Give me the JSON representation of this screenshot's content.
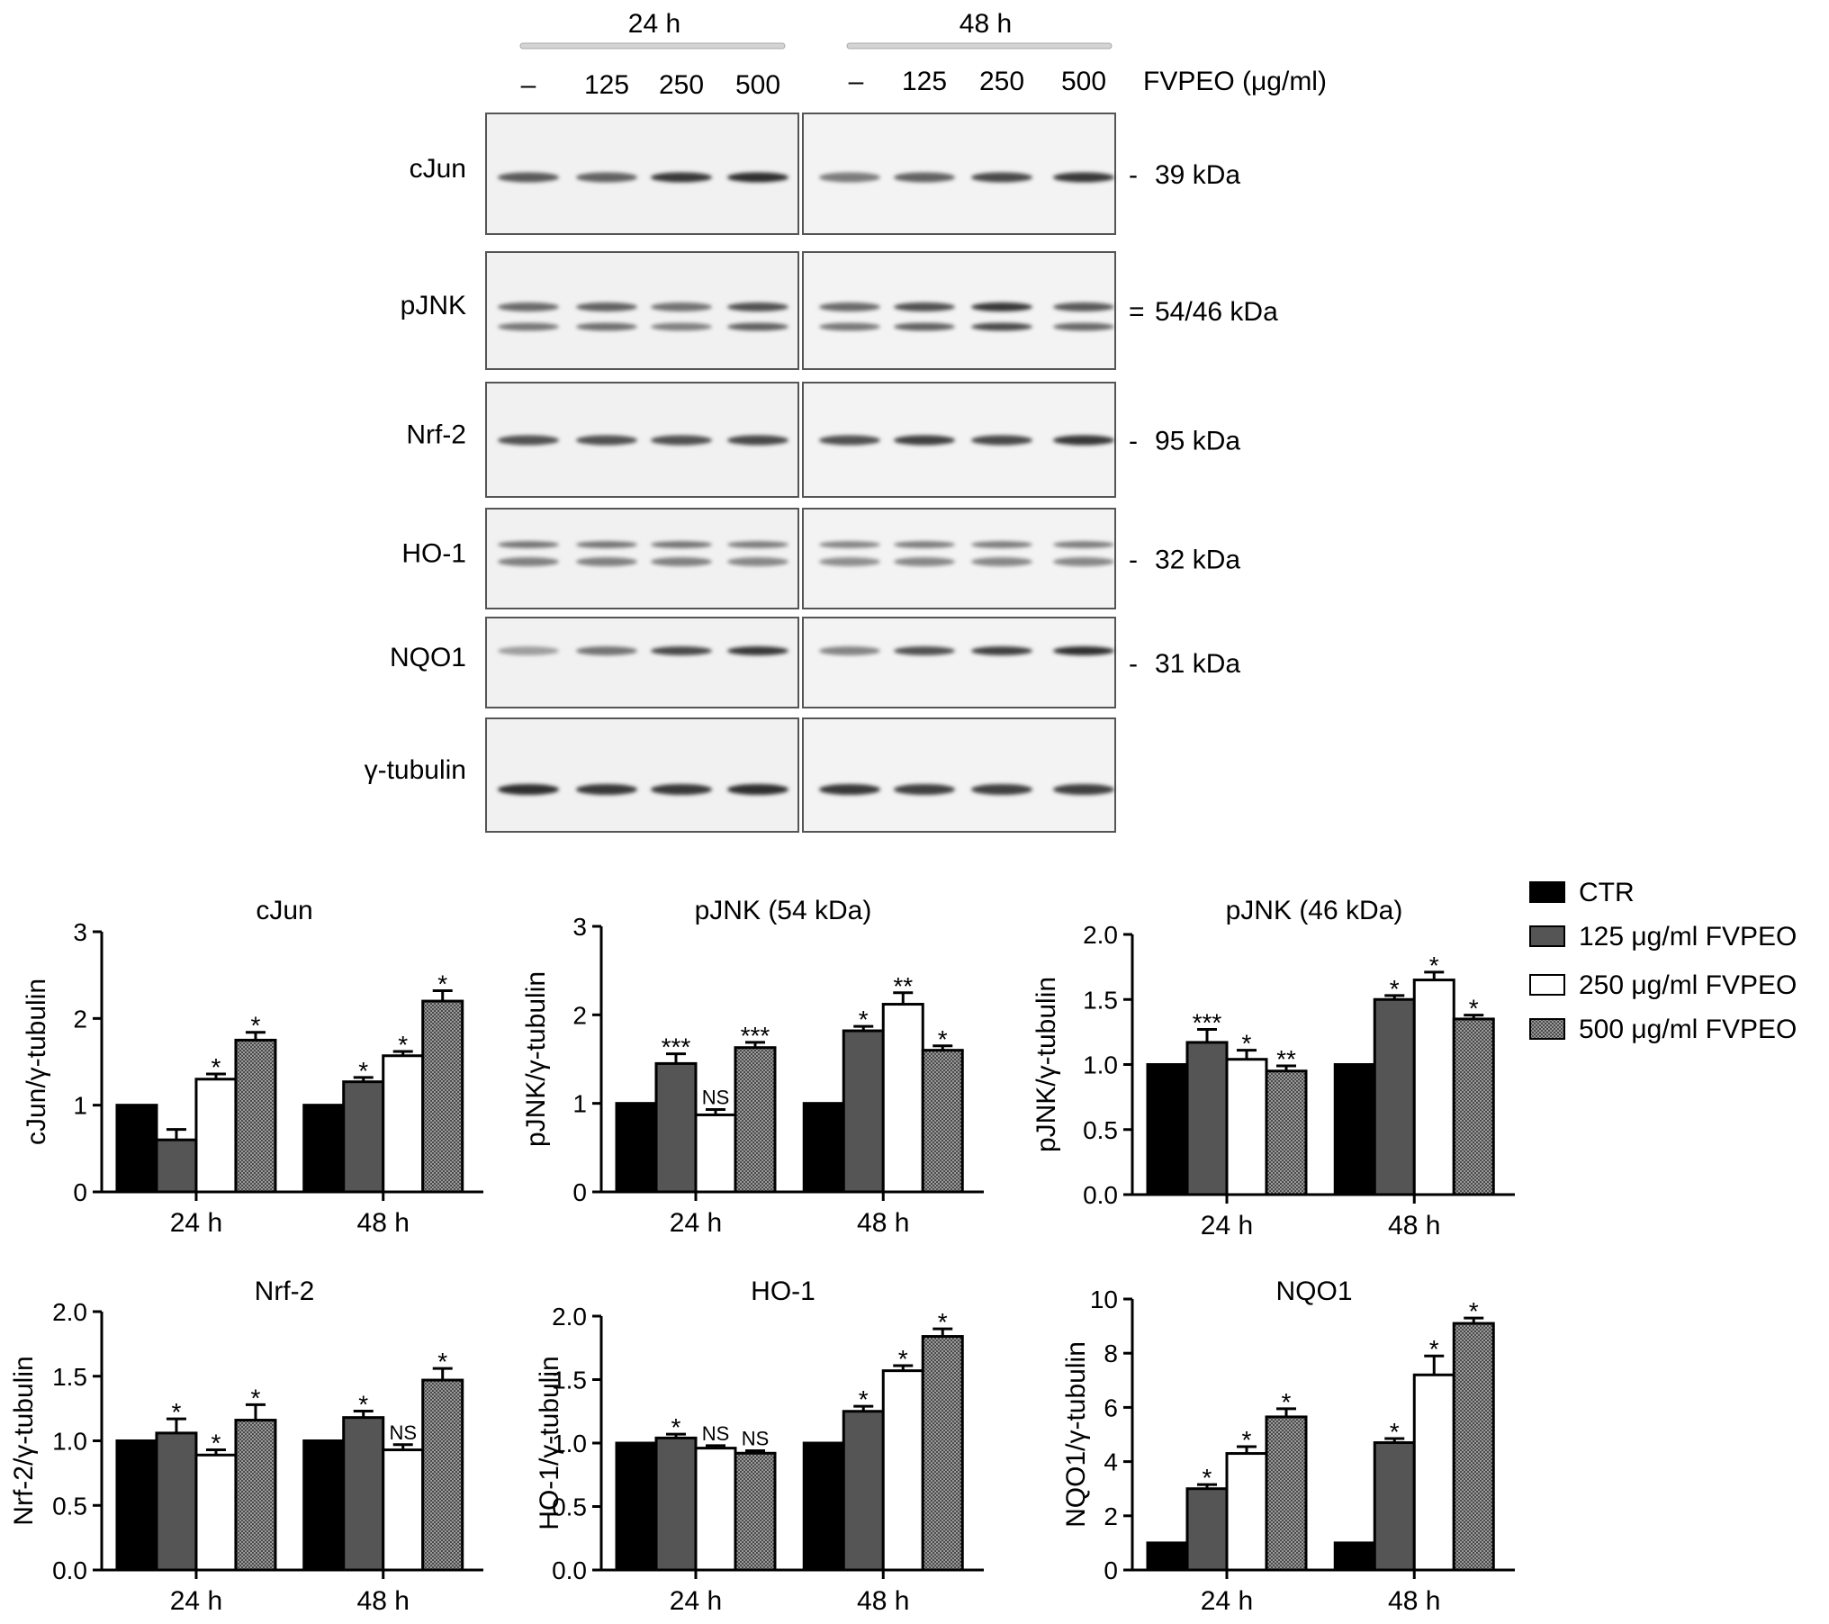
{
  "blot": {
    "timepoints": [
      "24 h",
      "48 h"
    ],
    "lanes": [
      "–",
      "125",
      "250",
      "500",
      "–",
      "125",
      "250",
      "500"
    ],
    "treatment_label": "FVPEO (μg/ml)",
    "rows": [
      {
        "name": "cJun",
        "size": "39 kDa",
        "tick": "-"
      },
      {
        "name": "pJNK",
        "size": "54/46 kDa",
        "tick": "="
      },
      {
        "name": "Nrf-2",
        "size": "95 kDa",
        "tick": "-"
      },
      {
        "name": "HO-1",
        "size": "32 kDa",
        "tick": "-"
      },
      {
        "name": "NQO1",
        "size": "31 kDa",
        "tick": "-"
      },
      {
        "name": "γ-tubulin",
        "size": "",
        "tick": ""
      }
    ]
  },
  "legend": {
    "items": [
      {
        "label": "CTR",
        "color": "#000000",
        "pattern": "solid"
      },
      {
        "label": "125 μg/ml FVPEO",
        "color": "#555555",
        "pattern": "solid"
      },
      {
        "label": "250 μg/ml FVPEO",
        "color": "#ffffff",
        "pattern": "solid"
      },
      {
        "label": "500 μg/ml FVPEO",
        "color": "#888888",
        "pattern": "hatch"
      }
    ]
  },
  "chart_data": [
    {
      "type": "bar",
      "title": "cJun",
      "ylabel": "cJun/γ-tubulin",
      "categories": [
        "24 h",
        "48 h"
      ],
      "ylim": [
        0,
        3
      ],
      "yticks": [
        "0",
        "1",
        "2",
        "3"
      ],
      "series": [
        {
          "name": "CTR",
          "values": [
            1.0,
            1.0
          ],
          "errors": [
            0,
            0
          ],
          "sig": [
            "",
            ""
          ]
        },
        {
          "name": "125 μg/ml FVPEO",
          "values": [
            0.6,
            1.27
          ],
          "errors": [
            0.12,
            0.05
          ],
          "sig": [
            "",
            "*"
          ]
        },
        {
          "name": "250 μg/ml FVPEO",
          "values": [
            1.3,
            1.57
          ],
          "errors": [
            0.06,
            0.05
          ],
          "sig": [
            "*",
            "*"
          ]
        },
        {
          "name": "500 μg/ml FVPEO",
          "values": [
            1.75,
            2.2
          ],
          "errors": [
            0.09,
            0.12
          ],
          "sig": [
            "*",
            "*"
          ]
        }
      ]
    },
    {
      "type": "bar",
      "title": "pJNK (54 kDa)",
      "ylabel": "pJNK/γ-tubulin",
      "categories": [
        "24 h",
        "48 h"
      ],
      "ylim": [
        0,
        3
      ],
      "yticks": [
        "0",
        "1",
        "2",
        "3"
      ],
      "series": [
        {
          "name": "CTR",
          "values": [
            1.0,
            1.0
          ],
          "errors": [
            0,
            0
          ],
          "sig": [
            "",
            ""
          ]
        },
        {
          "name": "125 μg/ml FVPEO",
          "values": [
            1.45,
            1.82
          ],
          "errors": [
            0.11,
            0.05
          ],
          "sig": [
            "***",
            "*"
          ]
        },
        {
          "name": "250 μg/ml FVPEO",
          "values": [
            0.87,
            2.12
          ],
          "errors": [
            0.06,
            0.13
          ],
          "sig": [
            "NS",
            "**"
          ]
        },
        {
          "name": "500 μg/ml FVPEO",
          "values": [
            1.63,
            1.6
          ],
          "errors": [
            0.06,
            0.05
          ],
          "sig": [
            "***",
            "*"
          ]
        }
      ]
    },
    {
      "type": "bar",
      "title": "pJNK (46 kDa)",
      "ylabel": "pJNK/γ-tubulin",
      "categories": [
        "24 h",
        "48 h"
      ],
      "ylim": [
        0,
        2.0
      ],
      "yticks": [
        "0.0",
        "0.5",
        "1.0",
        "1.5",
        "2.0"
      ],
      "series": [
        {
          "name": "CTR",
          "values": [
            1.0,
            1.0
          ],
          "errors": [
            0,
            0
          ],
          "sig": [
            "",
            ""
          ]
        },
        {
          "name": "125 μg/ml FVPEO",
          "values": [
            1.17,
            1.5
          ],
          "errors": [
            0.1,
            0.03
          ],
          "sig": [
            "***",
            "*"
          ]
        },
        {
          "name": "250 μg/ml FVPEO",
          "values": [
            1.04,
            1.65
          ],
          "errors": [
            0.07,
            0.06
          ],
          "sig": [
            "*",
            "*"
          ]
        },
        {
          "name": "500 μg/ml FVPEO",
          "values": [
            0.95,
            1.35
          ],
          "errors": [
            0.04,
            0.03
          ],
          "sig": [
            "**",
            "*"
          ]
        }
      ]
    },
    {
      "type": "bar",
      "title": "Nrf-2",
      "ylabel": "Nrf-2/γ-tubulin",
      "categories": [
        "24 h",
        "48 h"
      ],
      "ylim": [
        0,
        2.0
      ],
      "yticks": [
        "0.0",
        "0.5",
        "1.0",
        "1.5",
        "2.0"
      ],
      "series": [
        {
          "name": "CTR",
          "values": [
            1.0,
            1.0
          ],
          "errors": [
            0,
            0
          ],
          "sig": [
            "",
            ""
          ]
        },
        {
          "name": "125 μg/ml FVPEO",
          "values": [
            1.06,
            1.18
          ],
          "errors": [
            0.11,
            0.05
          ],
          "sig": [
            "*",
            "*"
          ]
        },
        {
          "name": "250 μg/ml FVPEO",
          "values": [
            0.89,
            0.93
          ],
          "errors": [
            0.04,
            0.04
          ],
          "sig": [
            "*",
            "NS"
          ]
        },
        {
          "name": "500 μg/ml FVPEO",
          "values": [
            1.16,
            1.47
          ],
          "errors": [
            0.12,
            0.09
          ],
          "sig": [
            "*",
            "*"
          ]
        }
      ]
    },
    {
      "type": "bar",
      "title": "HO-1",
      "ylabel": "HO-1/γ-tubulin",
      "categories": [
        "24 h",
        "48 h"
      ],
      "ylim": [
        0,
        2.0
      ],
      "yticks": [
        "0.0",
        "0.5",
        "1.0",
        "1.5",
        "2.0"
      ],
      "series": [
        {
          "name": "CTR",
          "values": [
            1.0,
            1.0
          ],
          "errors": [
            0,
            0
          ],
          "sig": [
            "",
            ""
          ]
        },
        {
          "name": "125 μg/ml FVPEO",
          "values": [
            1.04,
            1.25
          ],
          "errors": [
            0.03,
            0.04
          ],
          "sig": [
            "*",
            "*"
          ]
        },
        {
          "name": "250 μg/ml FVPEO",
          "values": [
            0.96,
            1.57
          ],
          "errors": [
            0.02,
            0.04
          ],
          "sig": [
            "NS",
            "*"
          ]
        },
        {
          "name": "500 μg/ml FVPEO",
          "values": [
            0.92,
            1.84
          ],
          "errors": [
            0.02,
            0.06
          ],
          "sig": [
            "NS",
            "*"
          ]
        }
      ]
    },
    {
      "type": "bar",
      "title": "NQO1",
      "ylabel": "NQO1/γ-tubulin",
      "categories": [
        "24 h",
        "48 h"
      ],
      "ylim": [
        0,
        10
      ],
      "yticks": [
        "0",
        "2",
        "4",
        "6",
        "8",
        "10"
      ],
      "series": [
        {
          "name": "CTR",
          "values": [
            1.0,
            1.0
          ],
          "errors": [
            0,
            0
          ],
          "sig": [
            "",
            ""
          ]
        },
        {
          "name": "125 μg/ml FVPEO",
          "values": [
            3.0,
            4.7
          ],
          "errors": [
            0.15,
            0.15
          ],
          "sig": [
            "*",
            "*"
          ]
        },
        {
          "name": "250 μg/ml FVPEO",
          "values": [
            4.3,
            7.2
          ],
          "errors": [
            0.25,
            0.7
          ],
          "sig": [
            "*",
            "*"
          ]
        },
        {
          "name": "500 μg/ml FVPEO",
          "values": [
            5.65,
            9.1
          ],
          "errors": [
            0.3,
            0.2
          ],
          "sig": [
            "*",
            "*"
          ]
        }
      ]
    }
  ]
}
